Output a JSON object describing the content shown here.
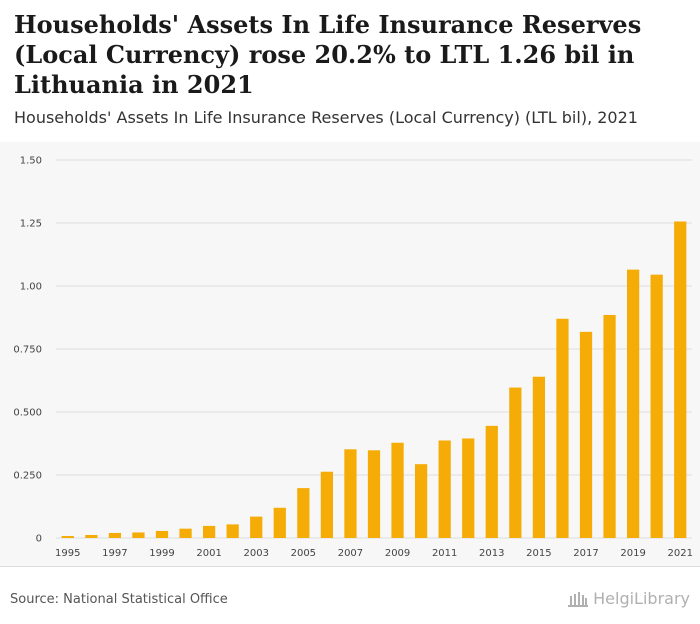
{
  "header": {
    "title": "Households' Assets In Life Insurance Reserves (Local Currency) rose 20.2% to LTL 1.26 bil in Lithuania in 2021",
    "subtitle": "Households' Assets In Life Insurance Reserves (Local Currency) (LTL bil), 2021"
  },
  "footer": {
    "source": "Source: National Statistical Office",
    "logo_text": "HelgiLibrary"
  },
  "colors": {
    "bar": "#f5ac07",
    "grid": "#dddddd",
    "background": "#f7f7f7"
  },
  "chart_data": {
    "type": "bar",
    "title": "Households' Assets In Life Insurance Reserves (Local Currency) (LTL bil), 2021",
    "xlabel": "",
    "ylabel": "",
    "ylim": [
      0,
      1.5
    ],
    "yticks": [
      0,
      0.25,
      0.5,
      0.75,
      1.0,
      1.25,
      1.5
    ],
    "ytick_labels": [
      "0",
      "0.250",
      "0.500",
      "0.750",
      "1.00",
      "1.25",
      "1.50"
    ],
    "categories": [
      "1995",
      "1996",
      "1997",
      "1998",
      "1999",
      "2000",
      "2001",
      "2002",
      "2003",
      "2004",
      "2005",
      "2006",
      "2007",
      "2008",
      "2009",
      "2010",
      "2011",
      "2012",
      "2013",
      "2014",
      "2015",
      "2016",
      "2017",
      "2018",
      "2019",
      "2020",
      "2021"
    ],
    "xtick_labels": [
      "1995",
      "1997",
      "1999",
      "2001",
      "2003",
      "2005",
      "2007",
      "2009",
      "2011",
      "2013",
      "2015",
      "2017",
      "2019",
      "2021"
    ],
    "values": [
      0.008,
      0.012,
      0.02,
      0.022,
      0.028,
      0.037,
      0.048,
      0.054,
      0.085,
      0.12,
      0.198,
      0.263,
      0.352,
      0.348,
      0.378,
      0.293,
      0.387,
      0.395,
      0.445,
      0.597,
      0.64,
      0.87,
      0.818,
      0.885,
      1.065,
      1.045,
      1.256
    ]
  }
}
